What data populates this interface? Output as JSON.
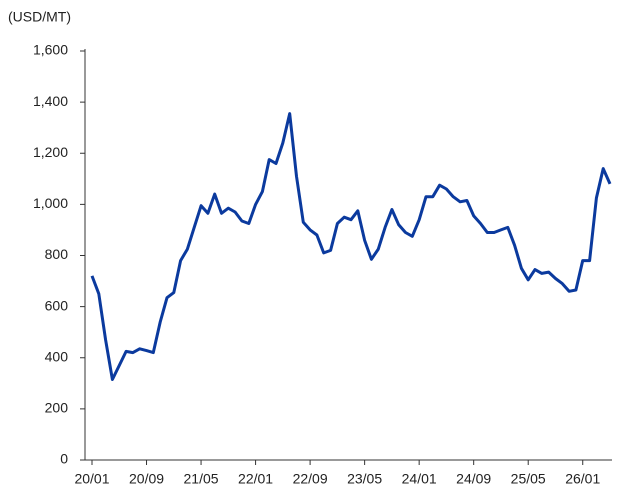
{
  "chart_data": {
    "type": "line",
    "y_label": "(USD/MT)",
    "categories": [
      "20/01",
      null,
      null,
      null,
      null,
      null,
      null,
      null,
      "20/09",
      null,
      null,
      null,
      null,
      null,
      null,
      null,
      "21/05",
      null,
      null,
      null,
      null,
      null,
      null,
      null,
      "22/01",
      null,
      null,
      null,
      null,
      null,
      null,
      null,
      "22/09",
      null,
      null,
      null,
      null,
      null,
      null,
      null,
      "23/05",
      null,
      null,
      null,
      null,
      null,
      null,
      null,
      "24/01",
      null,
      null,
      null,
      null,
      null,
      null,
      null,
      "24/09",
      null,
      null,
      null,
      null,
      null,
      null,
      null,
      "25/05",
      null,
      null,
      null,
      null,
      null,
      null,
      null,
      "26/01",
      null,
      null,
      null,
      null
    ],
    "values": [
      720,
      650,
      470,
      315,
      370,
      425,
      420,
      435,
      428,
      420,
      540,
      635,
      655,
      780,
      825,
      910,
      995,
      965,
      1040,
      965,
      985,
      970,
      935,
      925,
      1000,
      1050,
      1175,
      1160,
      1240,
      1355,
      1110,
      930,
      900,
      880,
      810,
      820,
      925,
      950,
      940,
      975,
      860,
      785,
      825,
      910,
      980,
      920,
      890,
      875,
      940,
      1030,
      1030,
      1075,
      1060,
      1030,
      1010,
      1015,
      955,
      925,
      890,
      890,
      900,
      910,
      840,
      750,
      705,
      745,
      730,
      735,
      710,
      690,
      660,
      665,
      780,
      780,
      1025,
      1140,
      1080
    ],
    "color": "#0b3a9e",
    "ylim": [
      0,
      1600
    ],
    "yticks": [
      0,
      200,
      400,
      600,
      800,
      {
        "value": 1000,
        "label": "1,000"
      },
      {
        "value": 1200,
        "label": "1,200"
      },
      {
        "value": 1400,
        "label": "1,400"
      },
      {
        "value": 1600,
        "label": "1,600"
      }
    ]
  }
}
